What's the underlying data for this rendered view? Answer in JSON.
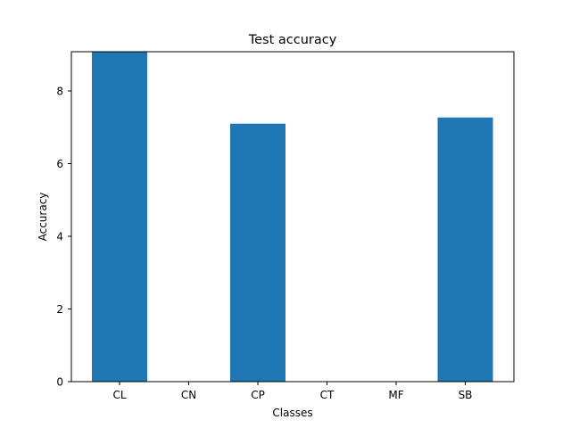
{
  "chart_data": {
    "type": "bar",
    "title": "Test accuracy",
    "xlabel": "Classes",
    "ylabel": "Accuracy",
    "categories": [
      "CL",
      "CN",
      "CP",
      "CT",
      "MF",
      "SB"
    ],
    "values": [
      9.08,
      0,
      7.1,
      0,
      0,
      7.27
    ],
    "ylim": [
      0,
      9.08
    ],
    "yticks": [
      0,
      2,
      4,
      6,
      8
    ],
    "grid": false,
    "bar_color": "#1f77b4"
  }
}
